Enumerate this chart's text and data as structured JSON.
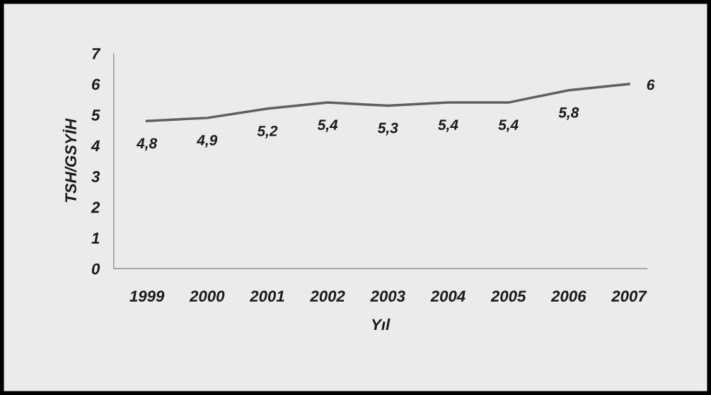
{
  "chart_data": {
    "type": "line",
    "xlabel": "Yıl",
    "ylabel": "TSH/GSYİH",
    "categories": [
      "1999",
      "2000",
      "2001",
      "2002",
      "2003",
      "2004",
      "2005",
      "2006",
      "2007"
    ],
    "series": [
      {
        "color": "#5f5f5f",
        "values": [
          4.8,
          4.9,
          5.2,
          5.4,
          5.3,
          5.4,
          5.4,
          5.8,
          6
        ],
        "value_labels": [
          "4,8",
          "4,9",
          "5,2",
          "5,4",
          "5,3",
          "5,4",
          "5,4",
          "5,8",
          "6"
        ]
      }
    ],
    "ylim": [
      0,
      7
    ],
    "yticks": [
      0,
      1,
      2,
      3,
      4,
      5,
      6,
      7
    ],
    "grid": false,
    "legend": false,
    "marker": "none"
  }
}
